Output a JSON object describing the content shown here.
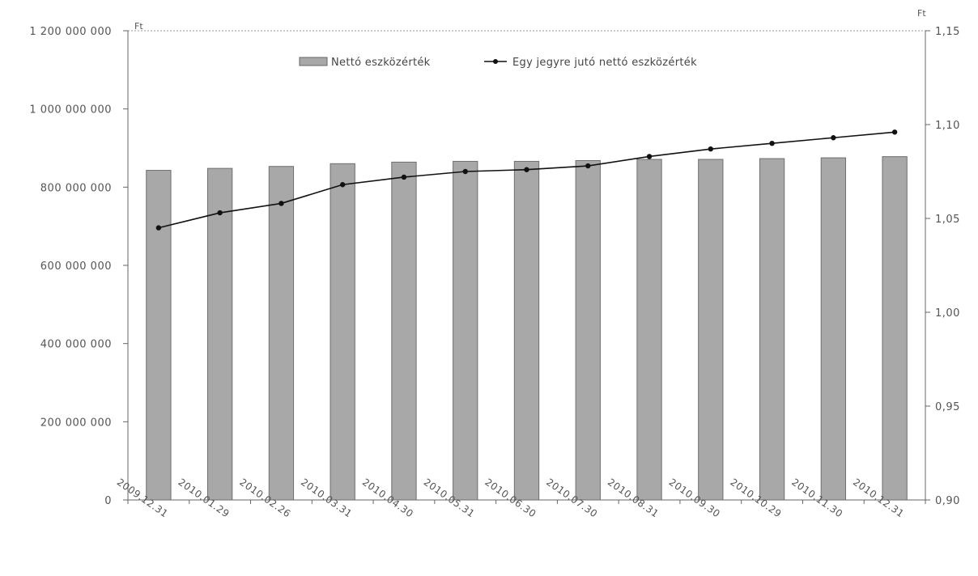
{
  "chart_data": {
    "type": "bar",
    "categories": [
      "2009.12.31",
      "2010.01.29",
      "2010.02.26",
      "2010.03.31",
      "2010.04.30",
      "2010.05.31",
      "2010.06.30",
      "2010.07.30",
      "2010.08.31",
      "2010.09.30",
      "2010.10.29",
      "2010.11.30",
      "2010.12.31"
    ],
    "series": [
      {
        "name": "Nettó eszközérték",
        "type": "bar",
        "axis": "left",
        "color": "#a8a8a8",
        "values": [
          843000000,
          848000000,
          853000000,
          860000000,
          864000000,
          866000000,
          866000000,
          868000000,
          871000000,
          871000000,
          873000000,
          875000000,
          878000000
        ]
      },
      {
        "name": "Egy jegyre jutó nettó eszközérték",
        "type": "line",
        "axis": "right",
        "color": "#111111",
        "values": [
          1.045,
          1.053,
          1.058,
          1.068,
          1.072,
          1.075,
          1.076,
          1.078,
          1.083,
          1.087,
          1.09,
          1.093,
          1.096
        ]
      }
    ],
    "y_left": {
      "unit": "Ft",
      "ylim": [
        0,
        1200000000
      ],
      "tick_labels": [
        "0",
        "200 000 000",
        "400 000 000",
        "600 000 000",
        "800 000 000",
        "1 000 000 000",
        "1 200 000 000"
      ]
    },
    "y_right": {
      "unit": "Ft",
      "ylim": [
        0.9,
        1.15
      ],
      "tick_labels": [
        "0,90",
        "0,95",
        "1,00",
        "1,05",
        "1,10",
        "1,15"
      ]
    },
    "legend_position": "top-center",
    "grid": false
  }
}
